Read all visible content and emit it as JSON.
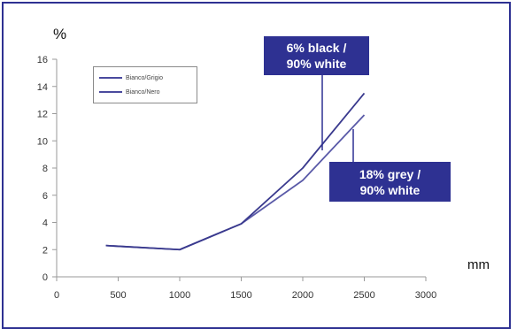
{
  "chart_data": {
    "type": "line",
    "title": "",
    "xlabel": "",
    "ylabel": "%",
    "y_axis_unit_label": "%",
    "x_axis_unit_label": "mm",
    "xlim": [
      0,
      3000
    ],
    "ylim": [
      0,
      16
    ],
    "x_ticks": [
      0,
      500,
      1000,
      1500,
      2000,
      2500,
      3000
    ],
    "y_ticks": [
      0,
      2,
      4,
      6,
      8,
      10,
      12,
      14,
      16
    ],
    "grid": false,
    "legend_position": "top-left",
    "series": [
      {
        "name": "Bianco/Grigio",
        "color": "#5a5aa8",
        "x": [
          400,
          1000,
          1500,
          2000,
          2500
        ],
        "y": [
          2.3,
          2.0,
          3.9,
          7.1,
          11.9
        ]
      },
      {
        "name": "Bianco/Nero",
        "color": "#3a3a8e",
        "x": [
          400,
          1000,
          1500,
          2000,
          2500
        ],
        "y": [
          2.3,
          2.0,
          3.9,
          8.0,
          13.5
        ]
      }
    ],
    "annotations": [
      {
        "text_line1": "6% black /",
        "text_line2": "90% white",
        "points_to": "Bianco/Nero"
      },
      {
        "text_line1": "18%  grey /",
        "text_line2": "90% white",
        "points_to": "Bianco/Grigio"
      }
    ]
  },
  "colors": {
    "frame": "#2e3192",
    "callout_bg": "#2e3192",
    "callout_text": "#ffffff",
    "axis": "#9a9a9a"
  }
}
